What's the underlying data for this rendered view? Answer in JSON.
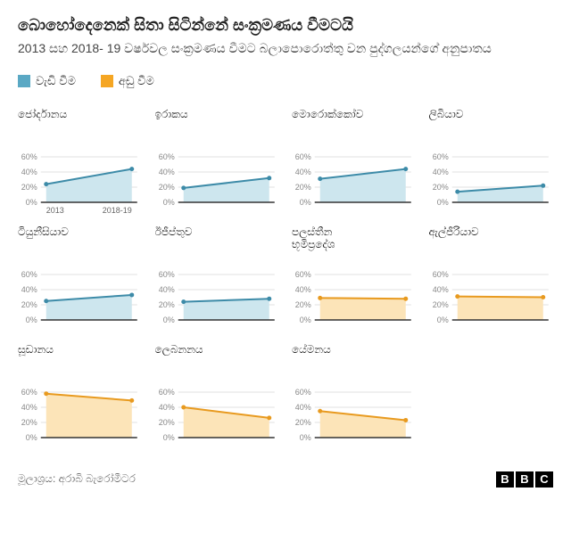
{
  "title": "බොහෝදෙනෙක් සිතා සිටින්නේ සංක්‍රමණය වීමටයි",
  "subtitle": "2013 සහ 2018- 19 වර්ෂවල සංක්‍රමණය වීමට බලාපොරොත්තු වන පුද්ගලයන්ගේ අනුපාතය",
  "legend": {
    "increase": {
      "label": "වැඩි වීම",
      "color": "#5aa8c4"
    },
    "decrease": {
      "label": "අඩු වීම",
      "color": "#f5a623"
    }
  },
  "colors": {
    "increase_line": "#3d8ba8",
    "increase_fill": "#cde6ee",
    "decrease_line": "#e89a1f",
    "decrease_fill": "#fce4b8",
    "grid": "#e0e0e0",
    "axis": "#333333",
    "background": "#ffffff"
  },
  "chart": {
    "ylim": [
      0,
      80
    ],
    "yticks": [
      0,
      20,
      40,
      60
    ],
    "ytick_labels": [
      "0%",
      "20%",
      "40%",
      "60%"
    ],
    "xcats": [
      "2013",
      "2018-19"
    ]
  },
  "panels": [
    {
      "title": "ජෝර්දානය",
      "trend": "increase",
      "values": [
        24,
        44
      ],
      "showX": true
    },
    {
      "title": "ඉරාකය",
      "trend": "increase",
      "values": [
        19,
        32
      ],
      "showX": false
    },
    {
      "title": "මොරොක්කෝව",
      "trend": "increase",
      "values": [
        31,
        44
      ],
      "showX": false
    },
    {
      "title": "ලිබියාව",
      "trend": "increase",
      "values": [
        14,
        22
      ],
      "showX": false
    },
    {
      "title": "ටියුනීසියාව",
      "trend": "increase",
      "values": [
        25,
        33
      ],
      "showX": false
    },
    {
      "title": "ඊජීප්තුව",
      "trend": "increase",
      "values": [
        24,
        28
      ],
      "showX": false
    },
    {
      "title": "පලස්තීන\nභූමිප්‍රදේශ",
      "trend": "decrease",
      "values": [
        29,
        28
      ],
      "showX": false
    },
    {
      "title": "ඇල්ජීරියාව",
      "trend": "decrease",
      "values": [
        31,
        30
      ],
      "showX": false
    },
    {
      "title": "සූඩානය",
      "trend": "decrease",
      "values": [
        58,
        49
      ],
      "showX": false
    },
    {
      "title": "ලෙබනනය",
      "trend": "decrease",
      "values": [
        40,
        26
      ],
      "showX": false
    },
    {
      "title": "යේමනය",
      "trend": "decrease",
      "values": [
        35,
        23
      ],
      "showX": false
    }
  ],
  "source": "මූලාශ්‍රය: අරාබි බැරෝමීටර",
  "bbc": [
    "B",
    "B",
    "C"
  ]
}
